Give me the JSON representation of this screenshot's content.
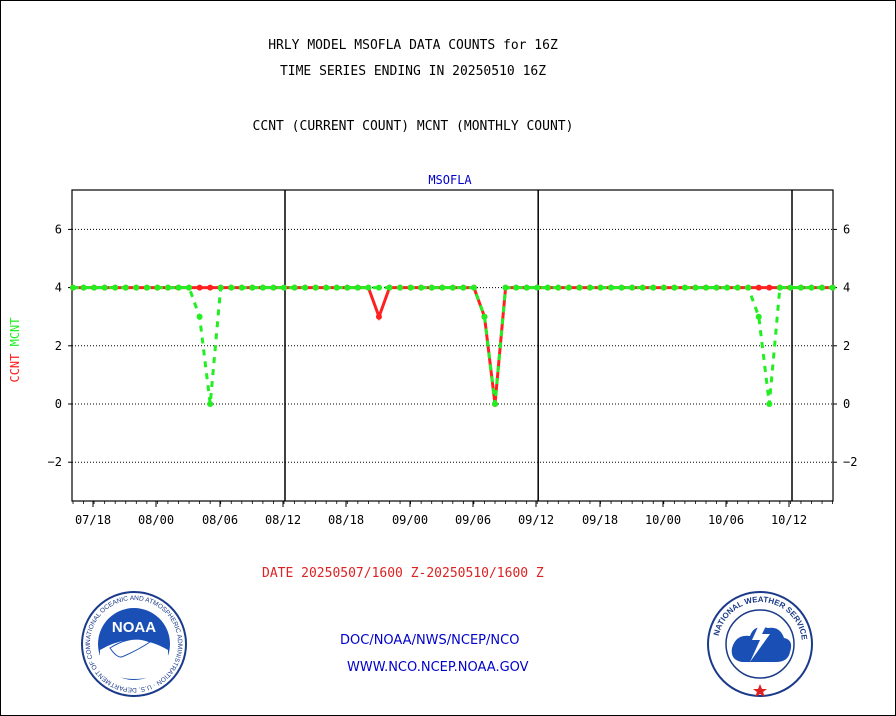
{
  "header": {
    "title_line1": "HRLY MODEL MSOFLA DATA COUNTS for 16Z",
    "title_line2": "TIME SERIES ENDING IN 20250510 16Z",
    "subtitle": "CCNT (CURRENT COUNT) MCNT (MONTHLY COUNT)"
  },
  "footer": {
    "date_range": "DATE 20250507/1600 Z-20250510/1600 Z",
    "org": "DOC/NOAA/NWS/NCEP/NCO",
    "url": "WWW.NCO.NCEP.NOAA.GOV"
  },
  "logos": {
    "left": {
      "name": "noaa-logo",
      "text": "NOAA",
      "ring": "NATIONAL OCEANIC AND ATMOSPHERIC ADMINISTRATION · U.S. DEPARTMENT OF COMMERCE"
    },
    "right": {
      "name": "nws-logo",
      "ring": "NATIONAL WEATHER SERVICE"
    }
  },
  "colors": {
    "ccnt": "#ff2020",
    "mcnt": "#22ee22",
    "title_blue": "#0000cc",
    "date_red": "#dd2222"
  },
  "chart_data": {
    "type": "line",
    "title": "MSOFLA",
    "ylabel_series": [
      "CCNT",
      "MCNT"
    ],
    "ylim": [
      -3.3,
      7.3
    ],
    "yticks": [
      -2,
      0,
      2,
      4,
      6
    ],
    "xticks": [
      "07/18",
      "08/00",
      "08/06",
      "08/12",
      "08/18",
      "09/00",
      "09/06",
      "09/12",
      "09/18",
      "10/00",
      "10/06",
      "10/12"
    ],
    "grid": true,
    "day_separators_after_hours": [
      24,
      48
    ],
    "x_start": "07/16",
    "x_end": "10/16",
    "series": [
      {
        "name": "CCNT",
        "color": "#ff2020",
        "values": [
          4,
          4,
          4,
          4,
          4,
          4,
          4,
          4,
          4,
          4,
          4,
          4,
          4,
          4,
          4,
          4,
          4,
          4,
          4,
          4,
          4,
          4,
          4,
          4,
          4,
          4,
          4,
          4,
          4,
          3,
          4,
          4,
          4,
          4,
          4,
          4,
          4,
          4,
          4,
          3,
          0,
          4,
          4,
          4,
          4,
          4,
          4,
          4,
          4,
          4,
          4,
          4,
          4,
          4,
          4,
          4,
          4,
          4,
          4,
          4,
          4,
          4,
          4,
          4,
          4,
          4,
          4,
          4,
          4,
          4,
          4,
          4,
          4
        ]
      },
      {
        "name": "MCNT",
        "color": "#22ee22",
        "values": [
          4,
          4,
          4,
          4,
          4,
          4,
          4,
          4,
          4,
          4,
          4,
          4,
          3,
          0,
          4,
          4,
          4,
          4,
          4,
          4,
          4,
          4,
          4,
          4,
          4,
          4,
          4,
          4,
          4,
          4,
          4,
          4,
          4,
          4,
          4,
          4,
          4,
          4,
          4,
          3,
          0,
          4,
          4,
          4,
          4,
          4,
          4,
          4,
          4,
          4,
          4,
          4,
          4,
          4,
          4,
          4,
          4,
          4,
          4,
          4,
          4,
          4,
          4,
          4,
          4,
          3,
          0,
          4,
          4,
          4,
          4,
          4,
          4
        ]
      }
    ]
  }
}
